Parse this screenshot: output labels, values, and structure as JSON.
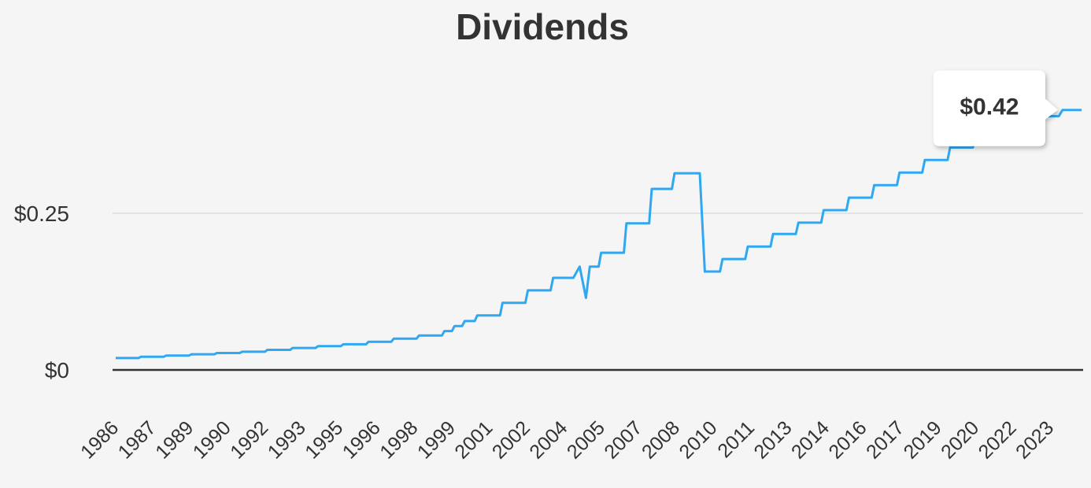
{
  "chart_data": {
    "type": "line",
    "title": "Dividends",
    "xlabel": "",
    "ylabel": "",
    "ylim": [
      0,
      0.5
    ],
    "y_ticks": [
      {
        "value": 0,
        "label": "$0"
      },
      {
        "value": 0.25,
        "label": "$0.25"
      }
    ],
    "x_tick_labels": [
      "1986",
      "1987",
      "1989",
      "1990",
      "1992",
      "1993",
      "1995",
      "1996",
      "1998",
      "1999",
      "2001",
      "2002",
      "2004",
      "2005",
      "2007",
      "2008",
      "2010",
      "2011",
      "2013",
      "2014",
      "2016",
      "2017",
      "2019",
      "2020",
      "2022",
      "2023"
    ],
    "xlim": [
      1986.0,
      2024.2
    ],
    "grid": true,
    "legend": "none",
    "line_color": "#2ea8f2",
    "series": [
      {
        "x": [
          1986.0,
          1986.9,
          1987.0,
          1987.9,
          1988.0,
          1988.9,
          1989.0,
          1989.9,
          1990.0,
          1990.9,
          1991.0,
          1991.9,
          1992.0,
          1992.9,
          1993.0,
          1993.9,
          1994.0,
          1994.9,
          1995.0,
          1995.9,
          1996.0,
          1996.9,
          1997.0,
          1997.9,
          1998.0,
          1998.9,
          1999.0,
          1999.3,
          1999.4,
          1999.7,
          1999.8,
          2000.2,
          2000.3,
          2001.2,
          2001.3,
          2002.2,
          2002.3,
          2003.2,
          2003.3,
          2004.1,
          2004.35,
          2004.6,
          2004.75,
          2005.1,
          2005.2,
          2006.1,
          2006.2,
          2007.1,
          2007.2,
          2008.0,
          2008.1,
          2009.1,
          2009.3,
          2009.9,
          2010.0,
          2010.9,
          2011.0,
          2011.9,
          2012.0,
          2012.9,
          2013.0,
          2013.9,
          2014.0,
          2014.9,
          2015.0,
          2015.9,
          2016.0,
          2016.9,
          2017.0,
          2017.9,
          2018.0,
          2018.9,
          2019.0,
          2019.9,
          2020.0,
          2020.9,
          2021.0,
          2021.9,
          2022.0,
          2022.9,
          2023.0,
          2023.3,
          2023.45,
          2024.2
        ],
        "y": [
          0.019,
          0.019,
          0.021,
          0.021,
          0.023,
          0.023,
          0.025,
          0.025,
          0.027,
          0.027,
          0.029,
          0.029,
          0.032,
          0.032,
          0.035,
          0.035,
          0.038,
          0.038,
          0.041,
          0.041,
          0.045,
          0.045,
          0.05,
          0.05,
          0.055,
          0.055,
          0.062,
          0.062,
          0.07,
          0.07,
          0.078,
          0.078,
          0.087,
          0.087,
          0.107,
          0.107,
          0.127,
          0.127,
          0.147,
          0.147,
          0.165,
          0.115,
          0.165,
          0.165,
          0.187,
          0.187,
          0.234,
          0.234,
          0.289,
          0.289,
          0.314,
          0.314,
          0.157,
          0.157,
          0.177,
          0.177,
          0.197,
          0.197,
          0.217,
          0.217,
          0.235,
          0.235,
          0.255,
          0.255,
          0.275,
          0.275,
          0.295,
          0.295,
          0.315,
          0.315,
          0.335,
          0.335,
          0.355,
          0.355,
          0.375,
          0.375,
          0.39,
          0.39,
          0.405,
          0.405,
          0.405,
          0.405,
          0.415,
          0.415
        ]
      }
    ],
    "tooltip": {
      "label": "$0.42",
      "x": 2023.45,
      "y": 0.415
    }
  }
}
